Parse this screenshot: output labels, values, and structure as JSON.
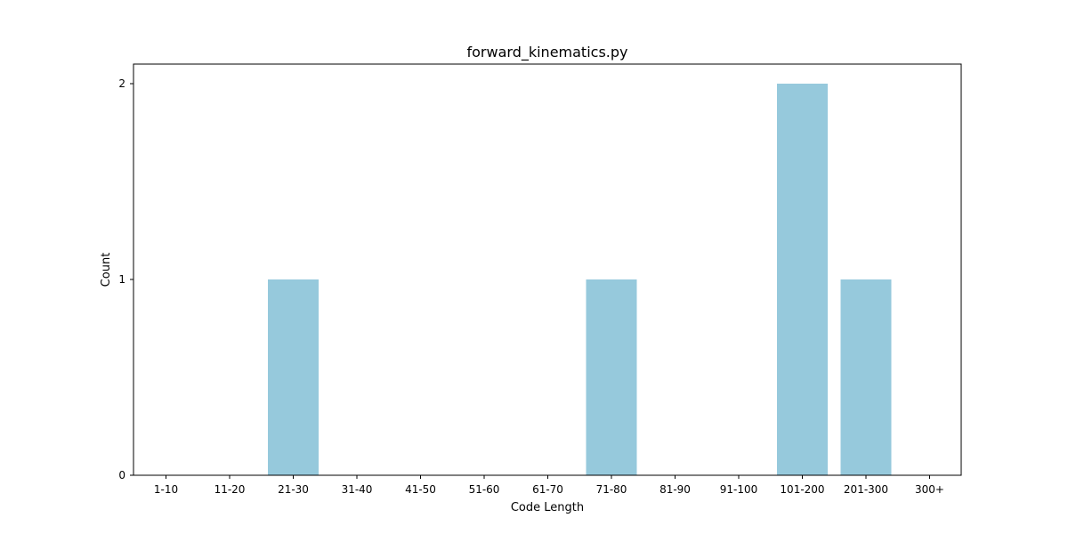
{
  "chart_data": {
    "type": "bar",
    "title": "forward_kinematics.py",
    "xlabel": "Code Length",
    "ylabel": "Count",
    "categories": [
      "1-10",
      "11-20",
      "21-30",
      "31-40",
      "41-50",
      "51-60",
      "61-70",
      "71-80",
      "81-90",
      "91-100",
      "101-200",
      "201-300",
      "300+"
    ],
    "values": [
      0,
      0,
      1,
      0,
      0,
      0,
      0,
      1,
      0,
      0,
      2,
      1,
      0
    ],
    "yticks": [
      0,
      1,
      2
    ],
    "ylim": [
      0,
      2.1
    ],
    "grid": false,
    "bar_color": "#96c9dc"
  }
}
